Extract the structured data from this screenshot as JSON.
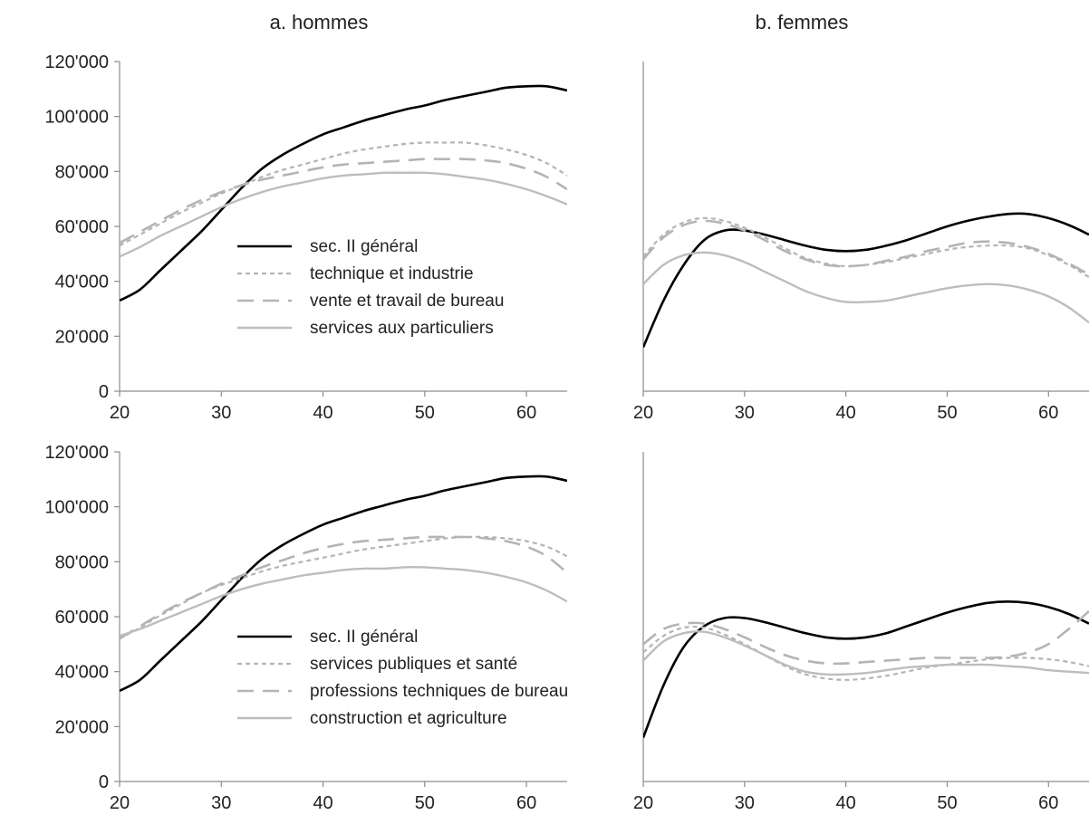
{
  "column_titles": [
    "a.    hommes",
    "b.  femmes"
  ],
  "styles": {
    "solid_black": {
      "color": "#000000",
      "dash": "",
      "width": 2.6
    },
    "dotted_gray": {
      "color": "#b4b4b4",
      "dash": "5,4",
      "width": 2.2
    },
    "dashed_gray": {
      "color": "#b4b4b4",
      "dash": "18,10",
      "width": 2.6
    },
    "solid_gray": {
      "color": "#bdbdbd",
      "dash": "",
      "width": 2.4
    }
  },
  "chart_data": [
    {
      "type": "line",
      "panel": "top-left",
      "column_title": "a.    hommes",
      "xlim": [
        20,
        64
      ],
      "ylim": [
        0,
        120000
      ],
      "x_ticks": [
        "20",
        "30",
        "40",
        "50",
        "60"
      ],
      "y_ticks": [
        "0",
        "20'000",
        "40'000",
        "60'000",
        "80'000",
        "100'000",
        "120'000"
      ],
      "legend": "inside-lower-middle",
      "series": [
        {
          "name": "sec. II général",
          "style": "solid_black",
          "x": [
            20,
            22,
            24,
            26,
            28,
            30,
            32,
            34,
            36,
            38,
            40,
            42,
            44,
            46,
            48,
            50,
            52,
            54,
            56,
            58,
            60,
            62,
            64
          ],
          "y": [
            33000,
            37000,
            44000,
            51000,
            58000,
            66000,
            74000,
            81000,
            86000,
            90000,
            93500,
            96000,
            98500,
            100500,
            102500,
            104000,
            106000,
            107500,
            109000,
            110500,
            111000,
            111000,
            109500
          ]
        },
        {
          "name": "technique et industrie",
          "style": "dotted_gray",
          "x": [
            20,
            22,
            24,
            26,
            28,
            30,
            32,
            34,
            36,
            38,
            40,
            42,
            44,
            46,
            48,
            50,
            52,
            54,
            56,
            58,
            60,
            62,
            64
          ],
          "y": [
            53000,
            57000,
            61000,
            65000,
            68500,
            72000,
            75000,
            78000,
            80500,
            82500,
            84500,
            86500,
            88000,
            89000,
            90000,
            90500,
            90500,
            90500,
            89500,
            88000,
            86000,
            83000,
            78500
          ]
        },
        {
          "name": "vente et travail de bureau",
          "style": "dashed_gray",
          "x": [
            20,
            22,
            24,
            26,
            28,
            30,
            32,
            34,
            36,
            38,
            40,
            42,
            44,
            46,
            48,
            50,
            52,
            54,
            56,
            58,
            60,
            62,
            64
          ],
          "y": [
            54000,
            58000,
            62000,
            66000,
            69500,
            72500,
            75000,
            77000,
            78500,
            80000,
            81500,
            82500,
            83000,
            83500,
            84000,
            84500,
            84500,
            84500,
            84000,
            83000,
            81000,
            78000,
            73500
          ]
        },
        {
          "name": "services aux particuliers",
          "style": "solid_gray",
          "x": [
            20,
            22,
            24,
            26,
            28,
            30,
            32,
            34,
            36,
            38,
            40,
            42,
            44,
            46,
            48,
            50,
            52,
            54,
            56,
            58,
            60,
            62,
            64
          ],
          "y": [
            49000,
            52500,
            56500,
            60000,
            63500,
            67000,
            70000,
            72500,
            74500,
            76000,
            77500,
            78500,
            79000,
            79500,
            79500,
            79500,
            79000,
            78000,
            77000,
            75500,
            73500,
            71000,
            68000
          ]
        }
      ]
    },
    {
      "type": "line",
      "panel": "top-right",
      "column_title": "b.  femmes",
      "xlim": [
        20,
        64
      ],
      "ylim": [
        0,
        120000
      ],
      "x_ticks": [
        "20",
        "30",
        "40",
        "50",
        "60"
      ],
      "y_ticks": [],
      "legend": "none",
      "series": [
        {
          "name": "sec. II général",
          "style": "solid_black",
          "x": [
            20,
            22,
            24,
            26,
            28,
            30,
            32,
            34,
            36,
            38,
            40,
            42,
            44,
            46,
            48,
            50,
            52,
            54,
            56,
            58,
            60,
            62,
            64
          ],
          "y": [
            16000,
            33000,
            46000,
            55000,
            58500,
            58500,
            57000,
            55000,
            53000,
            51500,
            51000,
            51500,
            53000,
            55000,
            57500,
            60000,
            62000,
            63500,
            64500,
            64500,
            63000,
            60500,
            57000
          ]
        },
        {
          "name": "technique et industrie",
          "style": "dotted_gray",
          "x": [
            20,
            22,
            24,
            26,
            28,
            30,
            32,
            34,
            36,
            38,
            40,
            42,
            44,
            46,
            48,
            50,
            52,
            54,
            56,
            58,
            60,
            62,
            64
          ],
          "y": [
            49000,
            57000,
            61500,
            63000,
            62000,
            59500,
            56000,
            52000,
            48500,
            46500,
            45500,
            46000,
            47000,
            48500,
            50000,
            51500,
            52500,
            53000,
            53000,
            52000,
            49500,
            46000,
            41500
          ]
        },
        {
          "name": "vente et travail de bureau",
          "style": "dashed_gray",
          "x": [
            20,
            22,
            24,
            26,
            28,
            30,
            32,
            34,
            36,
            38,
            40,
            42,
            44,
            46,
            48,
            50,
            52,
            54,
            56,
            58,
            60,
            62,
            64
          ],
          "y": [
            48000,
            56000,
            60500,
            62000,
            61000,
            58500,
            55000,
            51000,
            48000,
            46000,
            45500,
            46000,
            47500,
            49000,
            51000,
            52500,
            54000,
            54500,
            54000,
            52500,
            50000,
            46500,
            42500
          ]
        },
        {
          "name": "services aux particuliers",
          "style": "solid_gray",
          "x": [
            20,
            22,
            24,
            26,
            28,
            30,
            32,
            34,
            36,
            38,
            40,
            42,
            44,
            46,
            48,
            50,
            52,
            54,
            56,
            58,
            60,
            62,
            64
          ],
          "y": [
            39000,
            46000,
            49500,
            50500,
            49500,
            47000,
            43500,
            40000,
            36500,
            34000,
            32500,
            32500,
            33000,
            34500,
            36000,
            37500,
            38500,
            39000,
            38500,
            37000,
            34500,
            30500,
            25000
          ]
        }
      ]
    },
    {
      "type": "line",
      "panel": "bottom-left",
      "xlim": [
        20,
        64
      ],
      "ylim": [
        0,
        120000
      ],
      "x_ticks": [
        "20",
        "30",
        "40",
        "50",
        "60"
      ],
      "y_ticks": [
        "0",
        "20'000",
        "40'000",
        "60'000",
        "80'000",
        "100'000",
        "120'000"
      ],
      "legend": "inside-lower-middle",
      "series": [
        {
          "name": "sec. II général",
          "style": "solid_black",
          "x": [
            20,
            22,
            24,
            26,
            28,
            30,
            32,
            34,
            36,
            38,
            40,
            42,
            44,
            46,
            48,
            50,
            52,
            54,
            56,
            58,
            60,
            62,
            64
          ],
          "y": [
            33000,
            37000,
            44000,
            51000,
            58000,
            66000,
            74000,
            81000,
            86000,
            90000,
            93500,
            96000,
            98500,
            100500,
            102500,
            104000,
            106000,
            107500,
            109000,
            110500,
            111000,
            111000,
            109500
          ]
        },
        {
          "name": "services publiques et santé",
          "style": "dotted_gray",
          "x": [
            20,
            22,
            24,
            26,
            28,
            30,
            32,
            34,
            36,
            38,
            40,
            42,
            44,
            46,
            48,
            50,
            52,
            54,
            56,
            58,
            60,
            62,
            64
          ],
          "y": [
            52000,
            56000,
            60500,
            64500,
            68500,
            71500,
            74000,
            76500,
            78500,
            80000,
            81500,
            83000,
            84500,
            85500,
            86500,
            87500,
            88500,
            89000,
            89000,
            88500,
            87500,
            85500,
            82000
          ]
        },
        {
          "name": "professions techniques de bureau",
          "style": "dashed_gray",
          "x": [
            20,
            22,
            24,
            26,
            28,
            30,
            32,
            34,
            36,
            38,
            40,
            42,
            44,
            46,
            48,
            50,
            52,
            54,
            56,
            58,
            60,
            62,
            64
          ],
          "y": [
            52000,
            56500,
            61000,
            65000,
            68500,
            72000,
            75000,
            78000,
            80500,
            83000,
            85000,
            86500,
            87500,
            88000,
            88500,
            89000,
            89000,
            89000,
            88500,
            87500,
            85500,
            82000,
            76000
          ]
        },
        {
          "name": "construction et agriculture",
          "style": "solid_gray",
          "x": [
            20,
            22,
            24,
            26,
            28,
            30,
            32,
            34,
            36,
            38,
            40,
            42,
            44,
            46,
            48,
            50,
            52,
            54,
            56,
            58,
            60,
            62,
            64
          ],
          "y": [
            53000,
            55500,
            58500,
            61500,
            64500,
            67500,
            70000,
            72000,
            73500,
            75000,
            76000,
            77000,
            77500,
            77500,
            78000,
            78000,
            77500,
            77000,
            76000,
            74500,
            72500,
            69500,
            65500
          ]
        }
      ]
    },
    {
      "type": "line",
      "panel": "bottom-right",
      "xlim": [
        20,
        64
      ],
      "ylim": [
        0,
        120000
      ],
      "x_ticks": [
        "20",
        "30",
        "40",
        "50",
        "60"
      ],
      "y_ticks": [],
      "legend": "none",
      "series": [
        {
          "name": "sec. II général",
          "style": "solid_black",
          "x": [
            20,
            22,
            24,
            26,
            28,
            30,
            32,
            34,
            36,
            38,
            40,
            42,
            44,
            46,
            48,
            50,
            52,
            54,
            56,
            58,
            60,
            62,
            64
          ],
          "y": [
            16000,
            35000,
            49000,
            56500,
            59500,
            59500,
            58000,
            56000,
            54000,
            52500,
            52000,
            52500,
            54000,
            56500,
            59000,
            61500,
            63500,
            65000,
            65500,
            65000,
            63500,
            61000,
            57500
          ]
        },
        {
          "name": "services publiques et santé",
          "style": "dotted_gray",
          "x": [
            20,
            22,
            24,
            26,
            28,
            30,
            32,
            34,
            36,
            38,
            40,
            42,
            44,
            46,
            48,
            50,
            52,
            54,
            56,
            58,
            60,
            62,
            64
          ],
          "y": [
            47000,
            53000,
            56000,
            56000,
            53500,
            50000,
            46000,
            42000,
            39000,
            37500,
            37000,
            37500,
            38500,
            40000,
            41500,
            42500,
            43500,
            44500,
            45000,
            45000,
            44500,
            43500,
            42000
          ]
        },
        {
          "name": "professions techniques de bureau",
          "style": "dashed_gray",
          "x": [
            20,
            22,
            24,
            26,
            28,
            30,
            32,
            34,
            36,
            38,
            40,
            42,
            44,
            46,
            48,
            50,
            52,
            54,
            56,
            58,
            60,
            62,
            64
          ],
          "y": [
            50000,
            55500,
            57500,
            57500,
            55500,
            52500,
            49000,
            46000,
            44000,
            43000,
            43000,
            43500,
            44000,
            44500,
            45000,
            45000,
            45000,
            45000,
            45500,
            47000,
            50000,
            55500,
            62000
          ]
        },
        {
          "name": "construction et agriculture",
          "style": "solid_gray",
          "x": [
            20,
            22,
            24,
            26,
            28,
            30,
            32,
            34,
            36,
            38,
            40,
            42,
            44,
            46,
            48,
            50,
            52,
            54,
            56,
            58,
            60,
            62,
            64
          ],
          "y": [
            44000,
            51000,
            54000,
            54500,
            52500,
            49500,
            46000,
            42500,
            40000,
            39000,
            39000,
            39500,
            40500,
            41500,
            42000,
            42500,
            42500,
            42500,
            42000,
            41500,
            40500,
            40000,
            39500
          ]
        }
      ]
    }
  ]
}
